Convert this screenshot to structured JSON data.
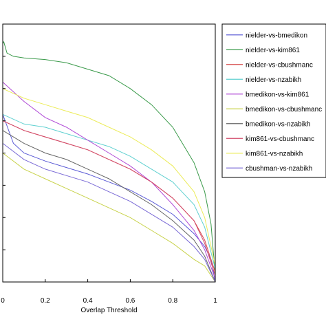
{
  "chart_data": {
    "type": "line",
    "xlabel": "Overlap Threshold",
    "ylabel": "",
    "xlim": [
      0,
      1
    ],
    "ylim": [
      0,
      0.8
    ],
    "xticks": [
      0,
      0.2,
      0.4,
      0.6,
      0.8,
      1
    ],
    "x_tick_labels": [
      "0",
      "0.2",
      "0.4",
      "0.6",
      "0.8",
      "1"
    ],
    "yticks": [
      0.1,
      0.2,
      0.3,
      0.4,
      0.5,
      0.6,
      0.7
    ],
    "grid": false,
    "legend_position": "top-right",
    "series": [
      {
        "name": "nielder-vs-bmedikon",
        "color": "#5b5bd6",
        "x": [
          0,
          0.05,
          0.1,
          0.2,
          0.3,
          0.4,
          0.5,
          0.6,
          0.7,
          0.8,
          0.9,
          0.95,
          0.98,
          1.0
        ],
        "y": [
          0.52,
          0.43,
          0.4,
          0.375,
          0.355,
          0.335,
          0.31,
          0.285,
          0.25,
          0.21,
          0.15,
          0.11,
          0.07,
          0.0
        ]
      },
      {
        "name": "nielder-vs-kim861",
        "color": "#3a9a4a",
        "x": [
          0,
          0.005,
          0.02,
          0.05,
          0.1,
          0.2,
          0.3,
          0.4,
          0.5,
          0.6,
          0.7,
          0.8,
          0.9,
          0.95,
          0.98,
          1.0
        ],
        "y": [
          0.74,
          0.745,
          0.71,
          0.7,
          0.695,
          0.69,
          0.68,
          0.66,
          0.64,
          0.6,
          0.55,
          0.48,
          0.37,
          0.28,
          0.18,
          0.02
        ]
      },
      {
        "name": "nielder-vs-cbushmanc",
        "color": "#d64b4b",
        "x": [
          0,
          0.1,
          0.2,
          0.3,
          0.4,
          0.5,
          0.6,
          0.7,
          0.8,
          0.9,
          0.95,
          1.0
        ],
        "y": [
          0.5,
          0.47,
          0.45,
          0.43,
          0.41,
          0.38,
          0.35,
          0.31,
          0.26,
          0.19,
          0.13,
          0.03
        ]
      },
      {
        "name": "nielder-vs-nzabikh",
        "color": "#5ed0d0",
        "x": [
          0,
          0.1,
          0.2,
          0.3,
          0.4,
          0.5,
          0.6,
          0.7,
          0.8,
          0.9,
          0.95,
          1.0
        ],
        "y": [
          0.52,
          0.49,
          0.48,
          0.46,
          0.44,
          0.42,
          0.39,
          0.35,
          0.31,
          0.24,
          0.17,
          0.04
        ]
      },
      {
        "name": "bmedikon-vs-kim861",
        "color": "#b04ad6",
        "x": [
          0,
          0.1,
          0.2,
          0.3,
          0.4,
          0.5,
          0.6,
          0.7,
          0.8,
          0.9,
          0.95,
          1.0
        ],
        "y": [
          0.62,
          0.56,
          0.51,
          0.48,
          0.44,
          0.4,
          0.36,
          0.31,
          0.24,
          0.16,
          0.1,
          0.01
        ]
      },
      {
        "name": "bmedikon-vs-cbushmanc",
        "color": "#c8d24a",
        "x": [
          0,
          0.1,
          0.2,
          0.3,
          0.4,
          0.5,
          0.6,
          0.7,
          0.8,
          0.9,
          0.95,
          1.0
        ],
        "y": [
          0.4,
          0.35,
          0.32,
          0.29,
          0.26,
          0.23,
          0.2,
          0.16,
          0.12,
          0.07,
          0.05,
          0.0
        ]
      },
      {
        "name": "bmedikon-vs-nzabikh",
        "color": "#666666",
        "x": [
          0,
          0.1,
          0.2,
          0.3,
          0.4,
          0.5,
          0.6,
          0.7,
          0.8,
          0.9,
          0.95,
          1.0
        ],
        "y": [
          0.47,
          0.43,
          0.4,
          0.38,
          0.35,
          0.32,
          0.28,
          0.24,
          0.19,
          0.13,
          0.08,
          0.0
        ]
      },
      {
        "name": "kim861-vs-cbushmanc",
        "color": "#d24a6a",
        "x": [
          0,
          0.1,
          0.2,
          0.3,
          0.4,
          0.5,
          0.6,
          0.7,
          0.8,
          0.9,
          0.95,
          1.0
        ],
        "y": [
          0.5,
          0.47,
          0.45,
          0.43,
          0.41,
          0.38,
          0.35,
          0.31,
          0.26,
          0.19,
          0.12,
          0.02
        ]
      },
      {
        "name": "kim861-vs-nzabikh",
        "color": "#ecec5a",
        "x": [
          0,
          0.1,
          0.2,
          0.3,
          0.4,
          0.5,
          0.6,
          0.7,
          0.8,
          0.9,
          0.95,
          1.0
        ],
        "y": [
          0.6,
          0.57,
          0.55,
          0.53,
          0.51,
          0.48,
          0.45,
          0.41,
          0.36,
          0.28,
          0.2,
          0.05
        ]
      },
      {
        "name": "cbushman-vs-nzabikh",
        "color": "#7a6ad6",
        "x": [
          0,
          0.1,
          0.2,
          0.3,
          0.4,
          0.5,
          0.6,
          0.7,
          0.8,
          0.9,
          0.95,
          1.0
        ],
        "y": [
          0.43,
          0.38,
          0.35,
          0.33,
          0.31,
          0.28,
          0.25,
          0.21,
          0.17,
          0.11,
          0.07,
          0.0
        ]
      }
    ],
    "legend_labels": [
      "nielder-vs-bmedikon",
      "nielder-vs-kim861",
      "nielder-vs-cbushmanc",
      "nielder-vs-nzabikh",
      "bmedikon-vs-kim861",
      "bmedikon-vs-cbushmanc",
      "bmedikon-vs-nzabikh",
      "kim861-vs-cbushmanc",
      "kim861-vs-nzabikh",
      "cbushman-vs-nzabikh"
    ]
  }
}
